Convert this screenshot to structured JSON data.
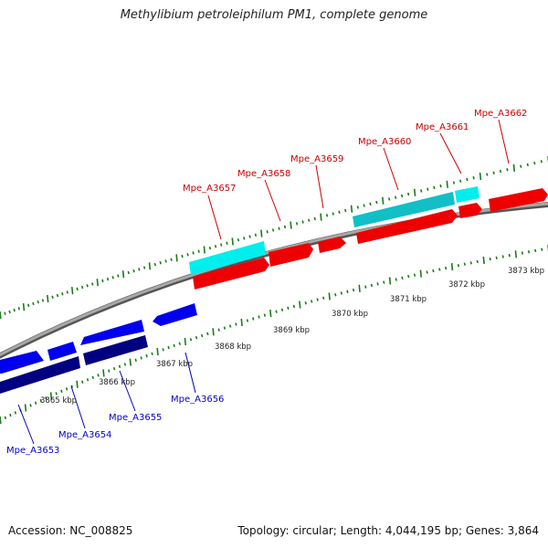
{
  "title": "Methylibium petroleiphilum PM1, complete genome",
  "footer": {
    "accession": "Accession: NC_008825",
    "stats": "Topology: circular; Length: 4,044,195 bp; Genes: 3,864"
  },
  "ruler": {
    "unit": "kbp",
    "labels": [
      "3865 kbp",
      "3866 kbp",
      "3867 kbp",
      "3868 kbp",
      "3869 kbp",
      "3870 kbp",
      "3871 kbp",
      "3872 kbp",
      "3873 kbp"
    ]
  },
  "genes_forward": [
    "Mpe_A3657",
    "Mpe_A3658",
    "Mpe_A3659",
    "Mpe_A3660",
    "Mpe_A3661",
    "Mpe_A3662"
  ],
  "genes_reverse": [
    "Mpe_A3653",
    "Mpe_A3654",
    "Mpe_A3655",
    "Mpe_A3656"
  ],
  "colors": {
    "forward_cds": "#ee0000",
    "forward_gene": "#00eeee",
    "reverse_cds": "#0000ee",
    "reverse_gene": "#000080",
    "forward_label": "#cc0000",
    "reverse_label": "#0000cc",
    "backbone": "#8a8a8a",
    "ticks": "#1a7a1a"
  }
}
